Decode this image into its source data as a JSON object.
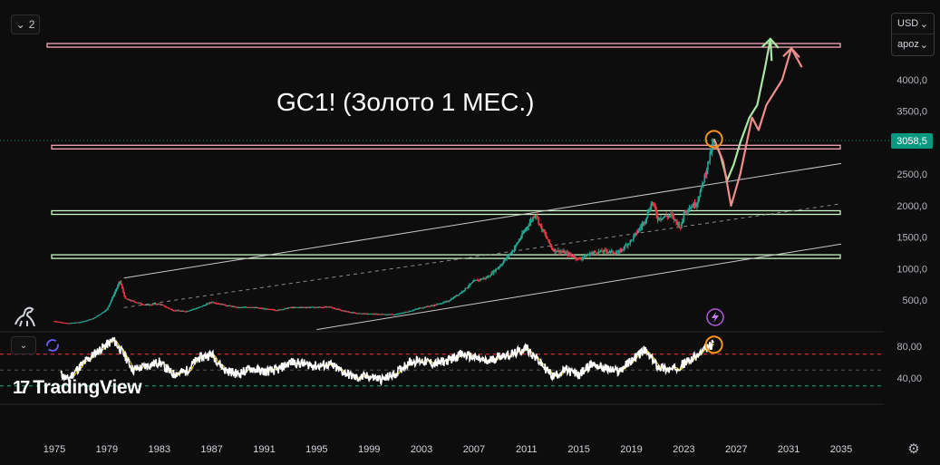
{
  "header": {
    "pane_count": "2",
    "chevron_icon": "chevron-down-icon"
  },
  "currency": {
    "unit": "USD",
    "scale": "арoz"
  },
  "title_annotation": "GC1! (Золото 1 МЕС.)",
  "current_price": "3058,5",
  "logo": {
    "text": "TradingView",
    "icon": "tradingview-logo-icon"
  },
  "icons": {
    "dino": "dinosaur-icon",
    "lightning": "lightning-icon",
    "sync": "sync-icon",
    "settings": "gear-icon"
  },
  "colors": {
    "background": "#0d0d0d",
    "up": "#22ab94",
    "down": "#f23645",
    "price_tag": "#089981",
    "resistance_zone": "#f7a8b8",
    "support_zone": "#c8f7c5",
    "projection_green": "#a8e6a3",
    "projection_red": "#f08c8c",
    "highlight_circle": "#f7931a",
    "oscillator_line": "#ffffff",
    "oscillator_ma": "#f2d900",
    "overbought_line": "#f23645",
    "oversold_line": "#22ab94"
  },
  "chart_data": {
    "type": "candlestick",
    "price_axis": {
      "ticks": [
        500,
        1000,
        1500,
        2000,
        2500,
        3000,
        3500,
        4000
      ],
      "labels": [
        "500,0",
        "1000,0",
        "1500,0",
        "2000,0",
        "2500,0",
        "3000,0",
        "3500,0",
        "4000,0"
      ]
    },
    "time_axis": {
      "labels": [
        "1975",
        "1979",
        "1983",
        "1987",
        "1991",
        "1995",
        "1999",
        "2003",
        "2007",
        "2011",
        "2015",
        "2019",
        "2023",
        "2027",
        "2031",
        "2035"
      ]
    },
    "oscillator_axis": {
      "ticks": [
        40,
        80
      ],
      "labels": [
        "40,00",
        "80,00"
      ],
      "levels": [
        70,
        50,
        30
      ]
    },
    "price_path": [
      [
        1975.0,
        165
      ],
      [
        1976.0,
        130
      ],
      [
        1977.0,
        150
      ],
      [
        1978.0,
        210
      ],
      [
        1979.0,
        350
      ],
      [
        1980.0,
        800
      ],
      [
        1980.4,
        520
      ],
      [
        1981.0,
        480
      ],
      [
        1982.0,
        420
      ],
      [
        1983.0,
        440
      ],
      [
        1984.0,
        340
      ],
      [
        1985.0,
        320
      ],
      [
        1986.0,
        380
      ],
      [
        1987.0,
        470
      ],
      [
        1988.0,
        420
      ],
      [
        1989.0,
        380
      ],
      [
        1990.0,
        390
      ],
      [
        1991.0,
        360
      ],
      [
        1992.0,
        340
      ],
      [
        1993.0,
        380
      ],
      [
        1994.0,
        385
      ],
      [
        1995.0,
        385
      ],
      [
        1996.0,
        390
      ],
      [
        1997.0,
        330
      ],
      [
        1998.0,
        290
      ],
      [
        1999.0,
        280
      ],
      [
        2000.0,
        275
      ],
      [
        2001.0,
        270
      ],
      [
        2002.0,
        320
      ],
      [
        2003.0,
        380
      ],
      [
        2004.0,
        420
      ],
      [
        2005.0,
        480
      ],
      [
        2006.0,
        620
      ],
      [
        2007.0,
        800
      ],
      [
        2008.0,
        860
      ],
      [
        2009.0,
        1050
      ],
      [
        2010.0,
        1300
      ],
      [
        2011.0,
        1650
      ],
      [
        2011.7,
        1880
      ],
      [
        2012.0,
        1700
      ],
      [
        2013.0,
        1300
      ],
      [
        2014.0,
        1250
      ],
      [
        2015.0,
        1150
      ],
      [
        2016.0,
        1250
      ],
      [
        2017.0,
        1280
      ],
      [
        2018.0,
        1250
      ],
      [
        2019.0,
        1450
      ],
      [
        2020.0,
        1750
      ],
      [
        2020.6,
        2070
      ],
      [
        2021.0,
        1800
      ],
      [
        2022.0,
        1850
      ],
      [
        2022.8,
        1650
      ],
      [
        2023.0,
        1900
      ],
      [
        2024.0,
        2050
      ],
      [
        2024.5,
        2400
      ],
      [
        2025.0,
        2800
      ],
      [
        2025.3,
        3058
      ]
    ],
    "horizontal_zones": [
      {
        "name": "resistance-top",
        "price": 4600
      },
      {
        "name": "resistance-ath",
        "price": 2930
      },
      {
        "name": "support-1",
        "price": 1890
      },
      {
        "name": "support-2",
        "price": 1190
      }
    ],
    "channel_lines": [
      {
        "name": "channel-upper",
        "from": [
          1980.3,
          850
        ],
        "to": [
          2035.0,
          2670
        ],
        "style": "solid"
      },
      {
        "name": "channel-middle",
        "from": [
          1980.3,
          380
        ],
        "to": [
          2035.0,
          2030
        ],
        "style": "dashed"
      },
      {
        "name": "channel-lower",
        "from": [
          1995.0,
          30
        ],
        "to": [
          2035.0,
          1390
        ],
        "style": "solid"
      }
    ],
    "projections": [
      {
        "name": "projection-green",
        "path": [
          [
            2025.3,
            3058
          ],
          [
            2025.8,
            2800
          ],
          [
            2026.3,
            2400
          ],
          [
            2026.8,
            2650
          ],
          [
            2027.3,
            3000
          ],
          [
            2028.0,
            3400
          ],
          [
            2028.6,
            3600
          ],
          [
            2029.2,
            4200
          ],
          [
            2029.6,
            4650
          ],
          [
            2029.7,
            4300
          ]
        ]
      },
      {
        "name": "projection-red",
        "path": [
          [
            2025.3,
            3058
          ],
          [
            2026.0,
            2700
          ],
          [
            2026.6,
            2000
          ],
          [
            2027.3,
            2500
          ],
          [
            2027.8,
            3000
          ],
          [
            2028.2,
            3400
          ],
          [
            2028.7,
            3200
          ],
          [
            2029.3,
            3600
          ],
          [
            2030.5,
            4000
          ],
          [
            2031.2,
            4500
          ],
          [
            2032.0,
            4200
          ]
        ]
      }
    ],
    "highlights": [
      {
        "name": "price-highlight",
        "x": 2025.3,
        "y": 3058
      }
    ],
    "oscillator_path": [
      [
        1975.5,
        45
      ],
      [
        1976.0,
        38
      ],
      [
        1977.0,
        55
      ],
      [
        1978.0,
        70
      ],
      [
        1979.5,
        88
      ],
      [
        1980.3,
        70
      ],
      [
        1981.0,
        50
      ],
      [
        1982.0,
        55
      ],
      [
        1983.0,
        60
      ],
      [
        1984.0,
        45
      ],
      [
        1985.0,
        48
      ],
      [
        1986.0,
        65
      ],
      [
        1987.0,
        70
      ],
      [
        1988.0,
        50
      ],
      [
        1989.0,
        45
      ],
      [
        1990.0,
        52
      ],
      [
        1991.0,
        48
      ],
      [
        1992.0,
        50
      ],
      [
        1993.0,
        60
      ],
      [
        1994.0,
        58
      ],
      [
        1995.0,
        55
      ],
      [
        1996.0,
        57
      ],
      [
        1997.0,
        48
      ],
      [
        1998.0,
        40
      ],
      [
        1999.0,
        42
      ],
      [
        2000.0,
        38
      ],
      [
        2001.0,
        45
      ],
      [
        2002.0,
        60
      ],
      [
        2003.0,
        62
      ],
      [
        2004.0,
        58
      ],
      [
        2005.0,
        62
      ],
      [
        2006.0,
        70
      ],
      [
        2007.0,
        66
      ],
      [
        2008.0,
        60
      ],
      [
        2009.0,
        68
      ],
      [
        2010.0,
        70
      ],
      [
        2011.0,
        78
      ],
      [
        2012.0,
        60
      ],
      [
        2013.0,
        42
      ],
      [
        2014.0,
        50
      ],
      [
        2015.0,
        44
      ],
      [
        2016.0,
        58
      ],
      [
        2017.0,
        52
      ],
      [
        2018.0,
        48
      ],
      [
        2019.0,
        62
      ],
      [
        2020.0,
        75
      ],
      [
        2021.0,
        55
      ],
      [
        2022.0,
        50
      ],
      [
        2023.0,
        58
      ],
      [
        2024.0,
        68
      ],
      [
        2025.0,
        80
      ],
      [
        2025.3,
        84
      ]
    ],
    "grid": false
  }
}
